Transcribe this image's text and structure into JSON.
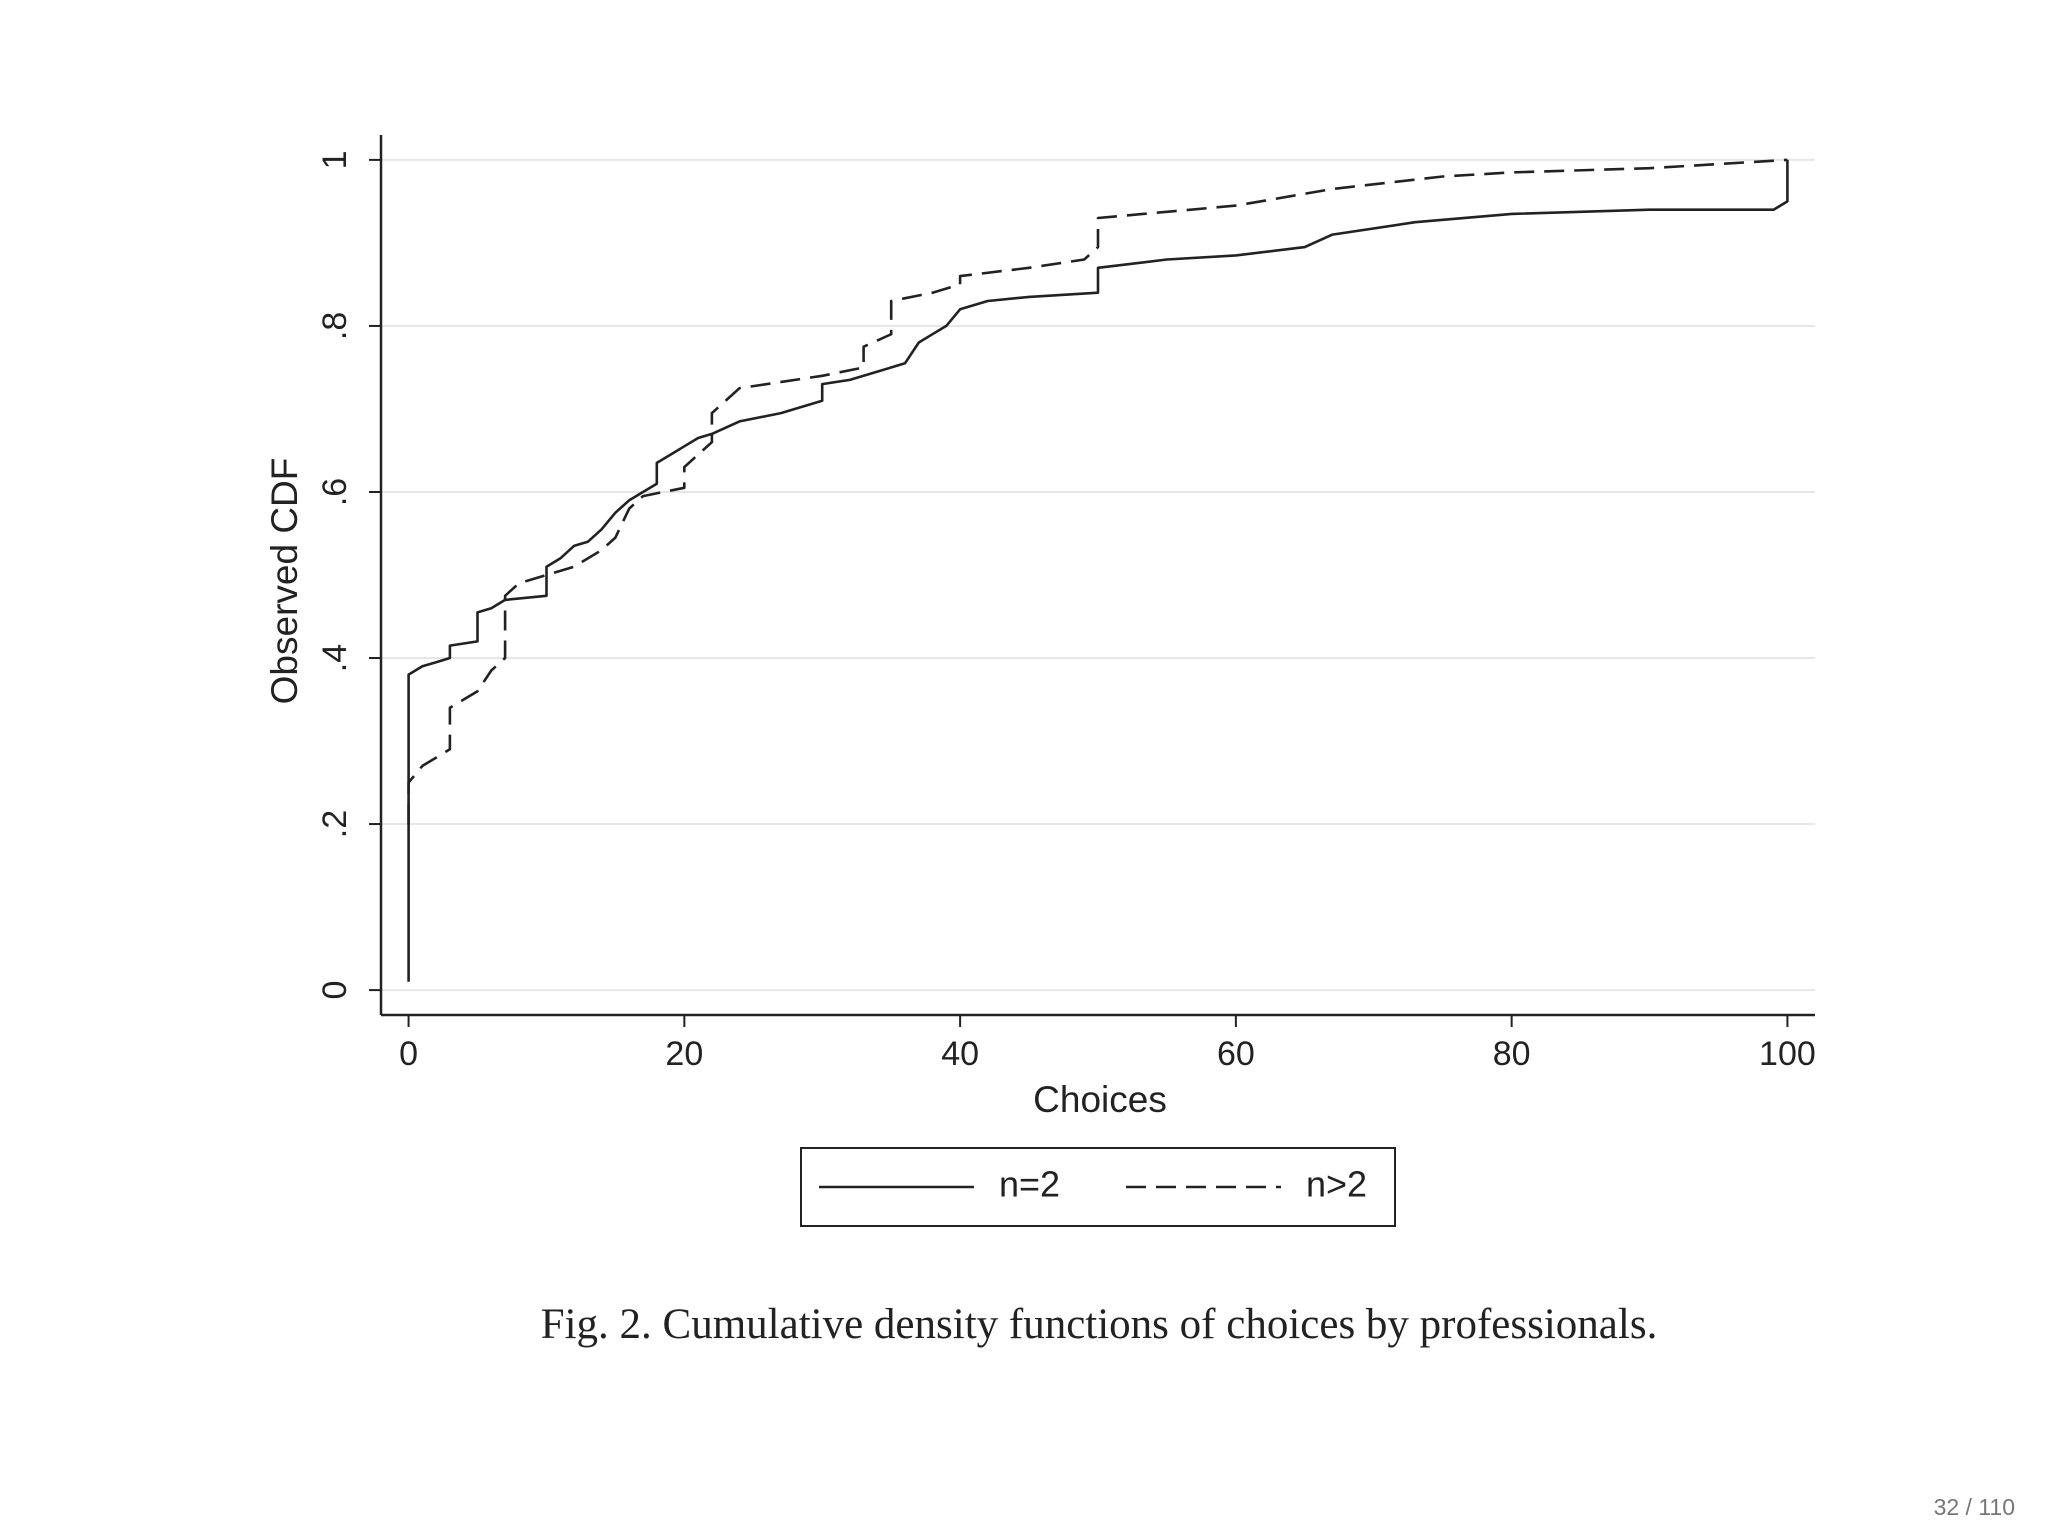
{
  "chart_data": {
    "type": "line",
    "x_label": "Choices",
    "y_label": "Observed CDF",
    "caption": "Fig. 2. Cumulative density functions of choices by professionals.",
    "xlim": [
      -2,
      102
    ],
    "ylim": [
      -0.03,
      1.03
    ],
    "xticks": [
      0,
      20,
      40,
      60,
      80,
      100
    ],
    "yticks": [
      0,
      {
        "value": 0.2,
        "label": ".2"
      },
      {
        "value": 0.4,
        "label": ".4"
      },
      {
        "value": 0.6,
        "label": ".6"
      },
      {
        "value": 0.8,
        "label": ".8"
      },
      1
    ],
    "grid": true,
    "legend": "bottom",
    "series": [
      {
        "name": "n=2",
        "color": "#222222",
        "line_style": "solid",
        "x": [
          0,
          0,
          1,
          2,
          3,
          3,
          5,
          5,
          6,
          7,
          10,
          10,
          11,
          12,
          13,
          14,
          15,
          16,
          17,
          18,
          18,
          19,
          20,
          21,
          22,
          24,
          27,
          30,
          30,
          32,
          33,
          34,
          36,
          37,
          38,
          39,
          40,
          42,
          45,
          50,
          50,
          55,
          60,
          65,
          67,
          73,
          80,
          90,
          99,
          100,
          100
        ],
        "values": [
          0.01,
          0.38,
          0.39,
          0.395,
          0.4,
          0.415,
          0.42,
          0.455,
          0.46,
          0.47,
          0.475,
          0.51,
          0.52,
          0.535,
          0.54,
          0.555,
          0.575,
          0.59,
          0.6,
          0.61,
          0.635,
          0.645,
          0.655,
          0.665,
          0.67,
          0.685,
          0.695,
          0.71,
          0.73,
          0.735,
          0.74,
          0.745,
          0.755,
          0.78,
          0.79,
          0.8,
          0.82,
          0.83,
          0.835,
          0.84,
          0.87,
          0.88,
          0.885,
          0.895,
          0.91,
          0.925,
          0.935,
          0.94,
          0.94,
          0.95,
          1.0
        ]
      },
      {
        "name": "n>2",
        "color": "#222222",
        "line_style": "dashed",
        "x": [
          0,
          0,
          1,
          3,
          3,
          5,
          6,
          7,
          7,
          8,
          10,
          12,
          14,
          15,
          16,
          17,
          20,
          20,
          21,
          22,
          22,
          24,
          30,
          33,
          33,
          35,
          35,
          38,
          40,
          40,
          45,
          49,
          50,
          50,
          60,
          67,
          75,
          80,
          90,
          100
        ],
        "values": [
          0.2,
          0.25,
          0.27,
          0.29,
          0.34,
          0.36,
          0.385,
          0.4,
          0.475,
          0.49,
          0.5,
          0.51,
          0.53,
          0.545,
          0.58,
          0.595,
          0.605,
          0.63,
          0.645,
          0.66,
          0.695,
          0.725,
          0.74,
          0.75,
          0.775,
          0.79,
          0.83,
          0.84,
          0.85,
          0.86,
          0.87,
          0.88,
          0.895,
          0.93,
          0.945,
          0.965,
          0.98,
          0.985,
          0.99,
          1.0
        ]
      }
    ]
  },
  "page_number": "32 / 110"
}
